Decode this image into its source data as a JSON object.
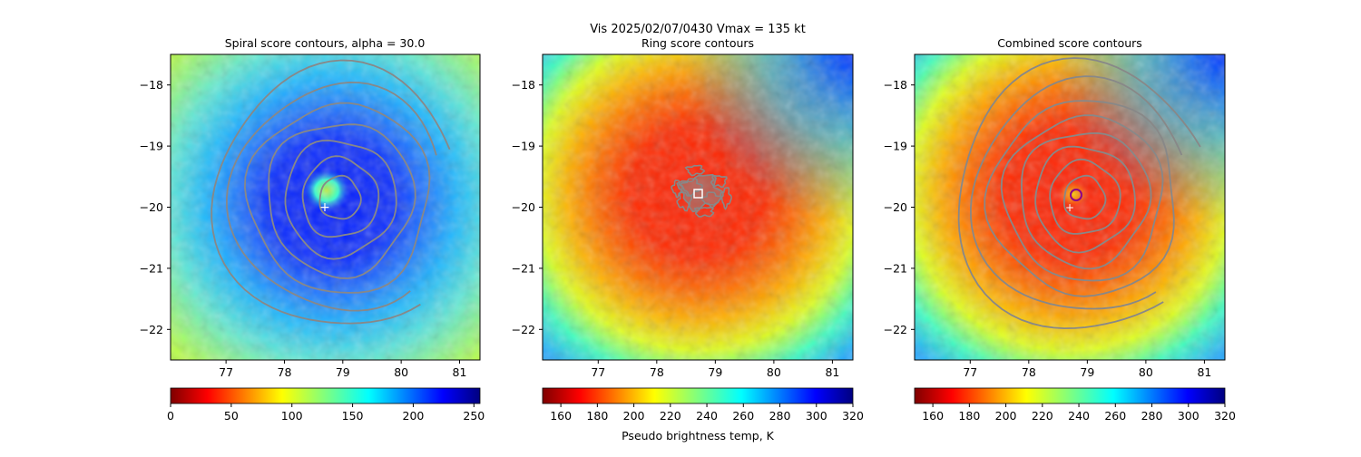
{
  "suptitle": "Vis  2025/02/07/0430    Vmax = 135 kt",
  "colorbar_label": "Pseudo brightness temp, K",
  "chart_data": [
    {
      "type": "heatmap",
      "title": "Spiral score contours, alpha = 30.0",
      "x_ticks": [
        77,
        78,
        79,
        80,
        81
      ],
      "y_ticks": [
        -18,
        -19,
        -20,
        -21,
        -22
      ],
      "xlim": [
        76.05,
        81.35
      ],
      "ylim": [
        -22.5,
        -17.5
      ],
      "colormap": "jet_r",
      "colorbar_ticks": [
        0,
        50,
        100,
        150,
        200,
        250
      ],
      "colorbar_range": [
        0,
        255
      ],
      "contour_center": [
        78.95,
        -19.85
      ],
      "contour_radii_deg": [
        0.35,
        0.65,
        0.95,
        1.25,
        1.55,
        1.85,
        2.15
      ],
      "contour_color": "#888888",
      "marker": {
        "symbol": "+",
        "lon": 78.7,
        "lat": -20.0,
        "color": "#ffffff"
      }
    },
    {
      "type": "heatmap",
      "title": "Ring score contours",
      "x_ticks": [
        77,
        78,
        79,
        80,
        81
      ],
      "y_ticks": [
        -18,
        -19,
        -20,
        -21,
        -22
      ],
      "xlim": [
        76.05,
        81.35
      ],
      "ylim": [
        -22.5,
        -17.5
      ],
      "colormap": "jet_r",
      "colorbar_ticks": [
        160,
        180,
        200,
        220,
        240,
        260,
        280,
        300,
        320
      ],
      "colorbar_range": [
        150,
        320
      ],
      "contour_center": [
        78.75,
        -19.75
      ],
      "contour_color": "#888888",
      "marker": {
        "symbol": "square",
        "lon": 78.7,
        "lat": -19.75,
        "color": "#ffffff"
      }
    },
    {
      "type": "heatmap",
      "title": "Combined score contours",
      "x_ticks": [
        77,
        78,
        79,
        80,
        81
      ],
      "y_ticks": [
        -18,
        -19,
        -20,
        -21,
        -22
      ],
      "xlim": [
        76.05,
        81.35
      ],
      "ylim": [
        -22.5,
        -17.5
      ],
      "colormap": "jet_r",
      "colorbar_ticks": [
        160,
        180,
        200,
        220,
        240,
        260,
        280,
        300,
        320
      ],
      "colorbar_range": [
        150,
        320
      ],
      "contour_center": [
        78.95,
        -19.85
      ],
      "contour_radii_deg": [
        0.35,
        0.6,
        0.85,
        1.1,
        1.35,
        1.6,
        1.9,
        2.2
      ],
      "contour_color": "#888888",
      "marker": {
        "symbol": "+",
        "lon": 78.7,
        "lat": -20.0,
        "color": "#ffffff"
      },
      "center_circle": {
        "lon": 78.85,
        "lat": -19.78,
        "color": "#8b008b"
      }
    }
  ]
}
